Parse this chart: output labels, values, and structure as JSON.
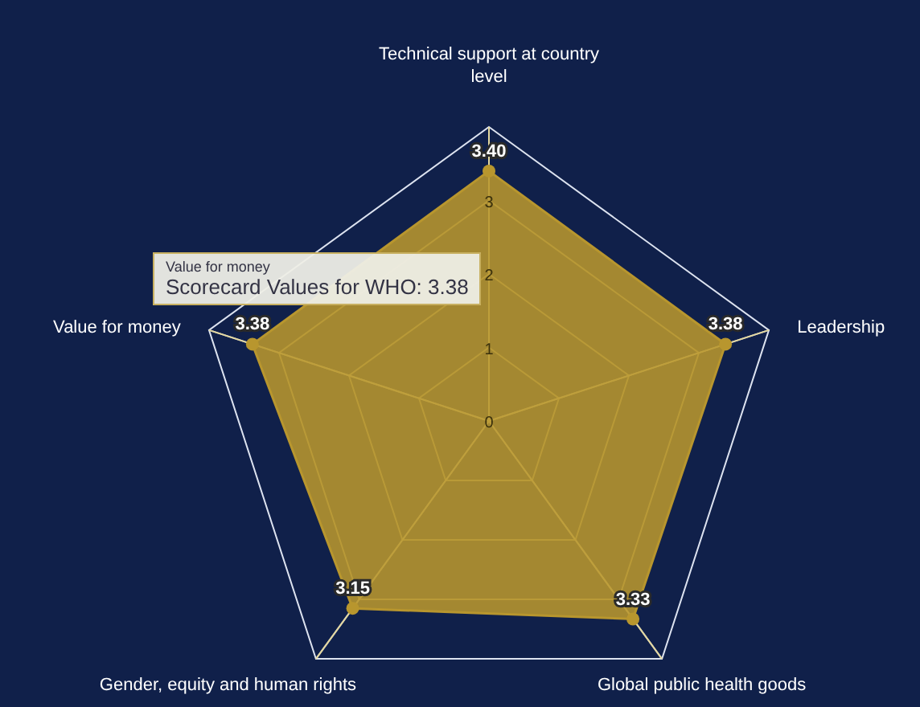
{
  "chart_data": {
    "type": "radar",
    "categories": [
      "Technical support at country level",
      "Leadership",
      "Global public health goods",
      "Gender, equity and human rights",
      "Value for money"
    ],
    "series": [
      {
        "color": "#b8962e",
        "values": [
          3.4,
          3.38,
          3.33,
          3.15,
          3.38
        ],
        "value_labels": [
          "3.40",
          "3.38",
          "3.33",
          "3.15",
          "3.38"
        ]
      }
    ],
    "ylim": [
      0,
      4
    ],
    "yticks": [
      0,
      1,
      2,
      3
    ],
    "grid": true,
    "marker": "circle",
    "annotations": [
      "Value for money",
      "Scorecard Values for WHO: 3.38"
    ]
  }
}
